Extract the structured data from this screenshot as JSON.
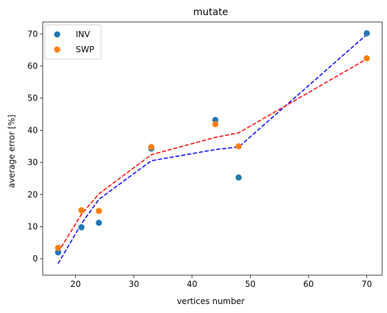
{
  "chart_data": {
    "type": "scatter",
    "title": "mutate",
    "xlabel": "vertices number",
    "ylabel": "average error [%]",
    "xlim": [
      14.35,
      72.65
    ],
    "ylim": [
      -5.1,
      73.7
    ],
    "xticks": [
      20,
      30,
      40,
      50,
      60,
      70
    ],
    "yticks": [
      0,
      10,
      20,
      30,
      40,
      50,
      60,
      70
    ],
    "grid": false,
    "legend_position": "top-left",
    "series": [
      {
        "name": "INV",
        "color": "#1f77b4",
        "marker": "circle",
        "x": [
          17,
          21,
          24,
          33,
          44,
          48,
          70
        ],
        "y": [
          2.0,
          9.8,
          11.2,
          34.3,
          43.2,
          25.3,
          70.2
        ]
      },
      {
        "name": "SWP",
        "color": "#ff7f0e",
        "marker": "circle",
        "x": [
          17,
          21,
          24,
          33,
          44,
          48,
          70
        ],
        "y": [
          3.4,
          15.1,
          14.9,
          34.8,
          41.9,
          35.0,
          62.4
        ]
      }
    ],
    "fit_lines": [
      {
        "color": "#0000ff",
        "style": "dashed",
        "x": [
          17,
          21,
          24,
          33,
          44,
          48,
          70
        ],
        "y": [
          -1.5,
          10.9,
          18.5,
          30.5,
          34.0,
          34.8,
          69.8
        ]
      },
      {
        "color": "#ff0000",
        "style": "dashed",
        "x": [
          17,
          21,
          24,
          33,
          44,
          48,
          70
        ],
        "y": [
          2.0,
          13.8,
          20.2,
          32.4,
          37.8,
          39.2,
          62.2
        ]
      }
    ]
  }
}
